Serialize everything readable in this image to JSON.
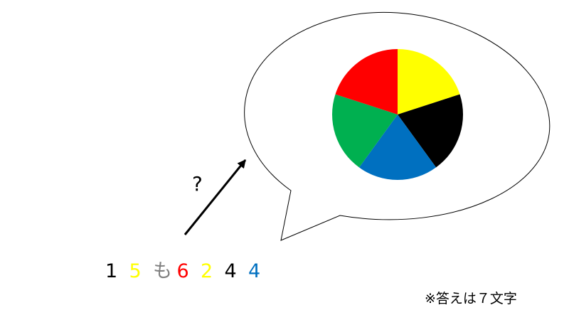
{
  "puzzle": {
    "question_mark": "?",
    "note": "※答えは７文字",
    "sequence": [
      {
        "text": "1",
        "color": "#000000"
      },
      {
        "text": "5",
        "color": "#ffff00"
      },
      {
        "text": "も",
        "color": "#7f7f7f"
      },
      {
        "text": "6",
        "color": "#ff0000"
      },
      {
        "text": "2",
        "color": "#ffff00"
      },
      {
        "text": "4",
        "color": "#000000"
      },
      {
        "text": "4",
        "color": "#0070c0"
      }
    ],
    "color_wheel": {
      "segments": [
        {
          "color_name": "yellow",
          "color": "#ffff00"
        },
        {
          "color_name": "black",
          "color": "#000000"
        },
        {
          "color_name": "blue",
          "color": "#0070c0"
        },
        {
          "color_name": "green",
          "color": "#00b050"
        },
        {
          "color_name": "red",
          "color": "#ff0000"
        }
      ]
    }
  }
}
